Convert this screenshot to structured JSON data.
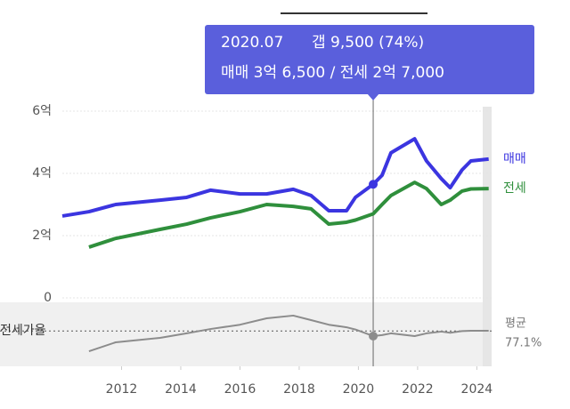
{
  "chart_data": [
    {
      "type": "line",
      "x": [
        2010.0,
        2010.9,
        2011.8,
        2013.3,
        2014.2,
        2015.0,
        2016.0,
        2016.9,
        2017.8,
        2018.4,
        2019.0,
        2019.6,
        2019.9,
        2020.5,
        2020.8,
        2021.1,
        2021.9,
        2022.3,
        2022.8,
        2023.1,
        2023.5,
        2023.8,
        2024.4
      ],
      "xlim": [
        2010,
        2024.5
      ],
      "xticks": [
        2012,
        2014,
        2016,
        2018,
        2020,
        2022,
        2024
      ],
      "ylim": [
        0,
        6
      ],
      "yticks": [
        {
          "value": 6,
          "label": "6억"
        },
        {
          "value": 4,
          "label": "4억"
        },
        {
          "value": 2,
          "label": "2억"
        },
        0
      ],
      "grid": true,
      "series": [
        {
          "name": "매매",
          "color": "#3b35e0",
          "values": [
            2.63,
            2.77,
            3.0,
            3.14,
            3.23,
            3.46,
            3.34,
            3.34,
            3.49,
            3.29,
            2.8,
            2.8,
            3.23,
            3.65,
            3.94,
            4.66,
            5.11,
            4.4,
            3.83,
            3.54,
            4.11,
            4.4,
            4.46
          ]
        },
        {
          "name": "전세",
          "color": "#2f8f3c",
          "values": [
            null,
            1.63,
            1.91,
            2.2,
            2.37,
            2.57,
            2.77,
            3.0,
            2.94,
            2.86,
            2.37,
            2.43,
            2.5,
            2.7,
            3.0,
            3.29,
            3.71,
            3.51,
            3.0,
            3.14,
            3.43,
            3.5,
            3.51
          ]
        }
      ],
      "tooltip": {
        "date": {
          "value": 2020.5,
          "label": "2020.07"
        },
        "gap": "갭 9,500 (74%)",
        "detail": "매매 3억 6,500 / 전세 2억 7,000"
      }
    },
    {
      "type": "line",
      "x": [
        2010.0,
        2010.9,
        2011.8,
        2013.3,
        2014.2,
        2015.0,
        2016.0,
        2016.9,
        2017.8,
        2018.4,
        2019.0,
        2019.6,
        2019.9,
        2020.5,
        2020.8,
        2021.1,
        2021.9,
        2022.3,
        2022.8,
        2023.1,
        2023.5,
        2023.8,
        2024.4
      ],
      "xlim": [
        2010,
        2024.5
      ],
      "ylim": [
        55,
        95
      ],
      "series": [
        {
          "name": "전세가율",
          "color": "#8c8c8c",
          "values": [
            null,
            64.4,
            70,
            72.8,
            75.6,
            78.3,
            81,
            85,
            86.7,
            83.9,
            81,
            79.4,
            78,
            73.9,
            74.5,
            75.6,
            73.9,
            75.6,
            76.7,
            76,
            77,
            77.2,
            77.2
          ]
        }
      ],
      "mean_title": "평균",
      "mean": {
        "value": 77.1,
        "label": "77.1%"
      }
    }
  ]
}
